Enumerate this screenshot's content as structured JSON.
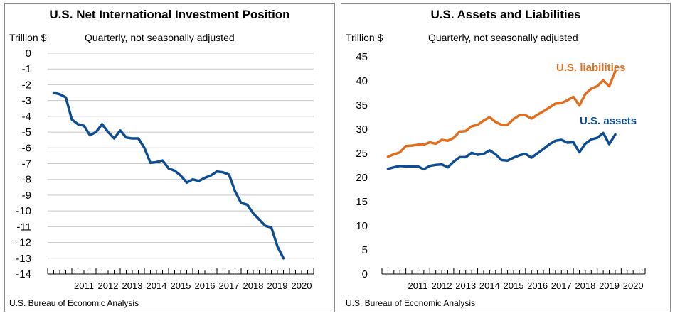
{
  "source_label": "U.S. Bureau of Economic Analysis",
  "chart_data": [
    {
      "type": "line",
      "title": "U.S. Net International Investment Position",
      "subtitle": "Quarterly, not seasonally adjusted",
      "ylabel": "Trillion $",
      "ylim": [
        -14,
        0
      ],
      "yticks": [
        0,
        -1,
        -2,
        -3,
        -4,
        -5,
        -6,
        -7,
        -8,
        -9,
        -10,
        -11,
        -12,
        -13,
        -14
      ],
      "xticks": [
        "2011",
        "2012",
        "2013",
        "2014",
        "2015",
        "2016",
        "2017",
        "2018",
        "2019",
        "2020"
      ],
      "x_start_year": 2010,
      "grid": true,
      "series": [
        {
          "color": "#0e4d92",
          "x": [
            "2010 Q4",
            "2011 Q1",
            "2011 Q2",
            "2011 Q3",
            "2011 Q4",
            "2012 Q1",
            "2012 Q2",
            "2012 Q3",
            "2012 Q4",
            "2013 Q1",
            "2013 Q2",
            "2013 Q3",
            "2013 Q4",
            "2014 Q1",
            "2014 Q2",
            "2014 Q3",
            "2014 Q4",
            "2015 Q1",
            "2015 Q2",
            "2015 Q3",
            "2015 Q4",
            "2016 Q1",
            "2016 Q2",
            "2016 Q3",
            "2016 Q4",
            "2017 Q1",
            "2017 Q2",
            "2017 Q3",
            "2017 Q4",
            "2018 Q1",
            "2018 Q2",
            "2018 Q3",
            "2018 Q4",
            "2019 Q1",
            "2019 Q2",
            "2019 Q3",
            "2019 Q4",
            "2020 Q1",
            "2020 Q2"
          ],
          "values": [
            -2.5,
            -2.6,
            -2.8,
            -4.2,
            -4.5,
            -4.6,
            -5.2,
            -5.0,
            -4.5,
            -5.0,
            -5.4,
            -4.9,
            -5.35,
            -5.4,
            -5.4,
            -6.0,
            -6.95,
            -6.9,
            -6.8,
            -7.3,
            -7.45,
            -7.75,
            -8.2,
            -8.0,
            -8.1,
            -7.9,
            -7.75,
            -7.5,
            -7.55,
            -7.7,
            -8.75,
            -9.5,
            -9.6,
            -10.15,
            -10.55,
            -10.95,
            -11.05,
            -12.25,
            -13.0
          ]
        }
      ]
    },
    {
      "type": "line",
      "title": "U.S. Assets and Liabilities",
      "subtitle": "Quarterly, not seasonally adjusted",
      "ylabel": "Trillion $",
      "ylim": [
        0,
        45
      ],
      "yticks": [
        45,
        40,
        35,
        30,
        25,
        20,
        15,
        10,
        5,
        0
      ],
      "xticks": [
        "2011",
        "2012",
        "2013",
        "2014",
        "2015",
        "2016",
        "2017",
        "2018",
        "2019",
        "2020"
      ],
      "x_start_year": 2010,
      "grid": false,
      "series": [
        {
          "name": "U.S. liabilities",
          "color": "#e16e1e",
          "x": [
            "2010 Q4",
            "2011 Q1",
            "2011 Q2",
            "2011 Q3",
            "2011 Q4",
            "2012 Q1",
            "2012 Q2",
            "2012 Q3",
            "2012 Q4",
            "2013 Q1",
            "2013 Q2",
            "2013 Q3",
            "2013 Q4",
            "2014 Q1",
            "2014 Q2",
            "2014 Q3",
            "2014 Q4",
            "2015 Q1",
            "2015 Q2",
            "2015 Q3",
            "2015 Q4",
            "2016 Q1",
            "2016 Q2",
            "2016 Q3",
            "2016 Q4",
            "2017 Q1",
            "2017 Q2",
            "2017 Q3",
            "2017 Q4",
            "2018 Q1",
            "2018 Q2",
            "2018 Q3",
            "2018 Q4",
            "2019 Q1",
            "2019 Q2",
            "2019 Q3",
            "2019 Q4",
            "2020 Q1",
            "2020 Q2"
          ],
          "values": [
            24.3,
            24.8,
            25.2,
            26.5,
            26.6,
            26.8,
            26.8,
            27.3,
            27.0,
            27.8,
            27.6,
            28.2,
            29.5,
            29.6,
            30.6,
            30.9,
            31.8,
            32.5,
            31.5,
            30.9,
            30.9,
            32.1,
            32.9,
            32.9,
            32.2,
            33.0,
            33.7,
            34.5,
            35.3,
            35.4,
            36.0,
            36.7,
            34.9,
            37.3,
            38.4,
            38.9,
            40.1,
            38.9,
            42.0
          ]
        },
        {
          "name": "U.S. assets",
          "color": "#0e4d92",
          "x": [
            "2010 Q4",
            "2011 Q1",
            "2011 Q2",
            "2011 Q3",
            "2011 Q4",
            "2012 Q1",
            "2012 Q2",
            "2012 Q3",
            "2012 Q4",
            "2013 Q1",
            "2013 Q2",
            "2013 Q3",
            "2013 Q4",
            "2014 Q1",
            "2014 Q2",
            "2014 Q3",
            "2014 Q4",
            "2015 Q1",
            "2015 Q2",
            "2015 Q3",
            "2015 Q4",
            "2016 Q1",
            "2016 Q2",
            "2016 Q3",
            "2016 Q4",
            "2017 Q1",
            "2017 Q2",
            "2017 Q3",
            "2017 Q4",
            "2018 Q1",
            "2018 Q2",
            "2018 Q3",
            "2018 Q4",
            "2019 Q1",
            "2019 Q2",
            "2019 Q3",
            "2019 Q4",
            "2020 Q1",
            "2020 Q2"
          ],
          "values": [
            21.8,
            22.1,
            22.4,
            22.3,
            22.3,
            22.3,
            21.7,
            22.4,
            22.6,
            22.7,
            22.1,
            23.3,
            24.2,
            24.2,
            25.1,
            24.7,
            24.9,
            25.6,
            24.8,
            23.6,
            23.5,
            24.1,
            24.6,
            24.9,
            24.1,
            25.0,
            25.9,
            26.9,
            27.6,
            27.8,
            27.2,
            27.3,
            25.2,
            27.0,
            27.9,
            28.2,
            29.2,
            26.9,
            28.9
          ]
        }
      ]
    }
  ]
}
